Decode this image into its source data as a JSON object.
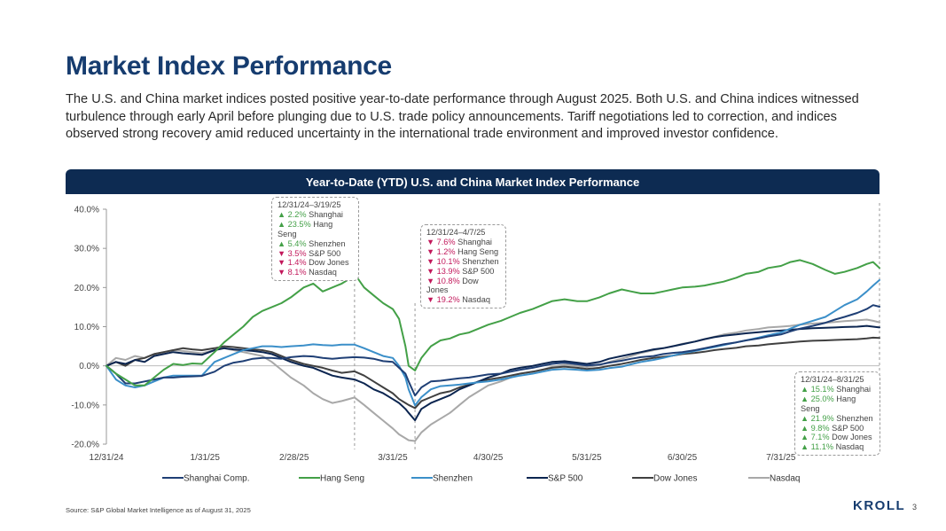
{
  "page": {
    "title": "Market Index Performance",
    "intro": "The U.S. and China market indices posted positive year-to-date performance through August 2025. Both U.S. and China indices witnessed turbulence through early April before plunging due to U.S. trade policy announcements. Tariff negotiations led to correction, and indices observed strong recovery amid reduced uncertainty in the international trade environment and improved investor confidence.",
    "source": "Source: S&P Global Market Intelligence as of August 31, 2025",
    "logo": "KROLL",
    "page_number": "3"
  },
  "callouts": [
    {
      "header": "12/31/24–3/19/25",
      "rows": [
        {
          "dir": "up",
          "value": "▲ 2.2%",
          "name": "Shanghai"
        },
        {
          "dir": "up",
          "value": "▲ 23.5%",
          "name": "Hang Seng"
        },
        {
          "dir": "up",
          "value": "▲ 5.4%",
          "name": "Shenzhen"
        },
        {
          "dir": "dn",
          "value": "▼ 3.5%",
          "name": "S&P 500"
        },
        {
          "dir": "dn",
          "value": "▼ 1.4%",
          "name": "Dow Jones"
        },
        {
          "dir": "dn",
          "value": "▼ 8.1%",
          "name": "Nasdaq"
        }
      ]
    },
    {
      "header": "12/31/24–4/7/25",
      "rows": [
        {
          "dir": "dn",
          "value": "▼ 7.6%",
          "name": "Shanghai"
        },
        {
          "dir": "dn",
          "value": "▼ 1.2%",
          "name": "Hang Seng"
        },
        {
          "dir": "dn",
          "value": "▼ 10.1%",
          "name": "Shenzhen"
        },
        {
          "dir": "dn",
          "value": "▼ 13.9%",
          "name": "S&P 500"
        },
        {
          "dir": "dn",
          "value": "▼ 10.8%",
          "name": "Dow Jones"
        },
        {
          "dir": "dn",
          "value": "▼ 19.2%",
          "name": "Nasdaq"
        }
      ]
    },
    {
      "header": "12/31/24–8/31/25",
      "rows": [
        {
          "dir": "up",
          "value": "▲ 15.1%",
          "name": "Shanghai"
        },
        {
          "dir": "up",
          "value": "▲ 25.0%",
          "name": "Hang Seng"
        },
        {
          "dir": "up",
          "value": "▲ 21.9%",
          "name": "Shenzhen"
        },
        {
          "dir": "up",
          "value": "▲ 9.8%",
          "name": "S&P 500"
        },
        {
          "dir": "up",
          "value": "▲ 7.1%",
          "name": "Dow Jones"
        },
        {
          "dir": "up",
          "value": "▲ 11.1%",
          "name": "Nasdaq"
        }
      ]
    }
  ],
  "colors": {
    "up": "#43a047",
    "down": "#c2185b",
    "header": "#0d2b52",
    "title": "#163c6f"
  },
  "chart_data": {
    "type": "line",
    "title": "Year-to-Date (YTD) U.S. and China Market Index Performance",
    "xlabel": "",
    "ylabel": "",
    "x_ticks": [
      {
        "day": 0,
        "label": "12/31/24"
      },
      {
        "day": 31,
        "label": "1/31/25"
      },
      {
        "day": 59,
        "label": "2/28/25"
      },
      {
        "day": 90,
        "label": "3/31/25"
      },
      {
        "day": 120,
        "label": "4/30/25"
      },
      {
        "day": 151,
        "label": "5/31/25"
      },
      {
        "day": 181,
        "label": "6/30/25"
      },
      {
        "day": 212,
        "label": "7/31/25"
      }
    ],
    "xlim": [
      0,
      243
    ],
    "y_ticks": [
      {
        "value": 40,
        "label": "40.0%"
      },
      {
        "value": 30,
        "label": "30.0%"
      },
      {
        "value": 20,
        "label": "20.0%"
      },
      {
        "value": 10,
        "label": "10.0%"
      },
      {
        "value": 0,
        "label": "0.0%"
      },
      {
        "value": -10,
        "label": "-10.0%"
      },
      {
        "value": -20,
        "label": "-20.0%"
      }
    ],
    "ylim": [
      -20,
      40
    ],
    "event_markers": [
      78,
      97,
      243
    ],
    "series": [
      {
        "name": "Shanghai Comp.",
        "color": "#1f3f75",
        "x": [
          0,
          3,
          6,
          9,
          12,
          15,
          18,
          21,
          24,
          27,
          30,
          34,
          37,
          40,
          43,
          46,
          49,
          52,
          55,
          58,
          62,
          65,
          68,
          71,
          74,
          78,
          81,
          84,
          87,
          90,
          92,
          94,
          95,
          97,
          99,
          102,
          105,
          108,
          111,
          114,
          117,
          120,
          124,
          127,
          130,
          134,
          137,
          140,
          144,
          148,
          151,
          155,
          158,
          162,
          165,
          168,
          172,
          175,
          178,
          181,
          185,
          188,
          191,
          194,
          198,
          201,
          205,
          208,
          212,
          215,
          218,
          222,
          226,
          229,
          232,
          236,
          239,
          241,
          243
        ],
        "values": [
          0,
          -2,
          -4.5,
          -4.5,
          -4,
          -3.5,
          -3,
          -3,
          -2.8,
          -2.7,
          -2.6,
          -1.5,
          0,
          0.8,
          1.2,
          1.8,
          2,
          2,
          1.8,
          2.2,
          2.5,
          2.4,
          2,
          1.8,
          2,
          2.2,
          2.1,
          1.8,
          1.2,
          1,
          -0.5,
          -2,
          -4,
          -7.6,
          -5.5,
          -4,
          -3.8,
          -3.5,
          -3.2,
          -3,
          -2.6,
          -2.2,
          -2,
          -1.5,
          -1,
          -0.5,
          0,
          0.5,
          0.8,
          0.4,
          0.1,
          0.3,
          0.8,
          1.3,
          1.8,
          2.2,
          2.5,
          3,
          3.3,
          3.5,
          4,
          4.5,
          5,
          5.5,
          6,
          6.5,
          7,
          7.5,
          8,
          8.8,
          9.5,
          10.2,
          11,
          11.8,
          12.5,
          13.5,
          14.5,
          15.5,
          15.1
        ]
      },
      {
        "name": "Hang Seng",
        "color": "#43a047",
        "x": [
          0,
          3,
          6,
          9,
          12,
          15,
          18,
          21,
          24,
          27,
          30,
          34,
          37,
          40,
          43,
          46,
          49,
          52,
          55,
          58,
          62,
          65,
          68,
          71,
          74,
          76,
          78,
          81,
          84,
          87,
          90,
          92,
          94,
          95,
          97,
          99,
          102,
          105,
          108,
          111,
          114,
          117,
          120,
          124,
          127,
          130,
          134,
          137,
          140,
          144,
          148,
          151,
          155,
          158,
          162,
          165,
          168,
          172,
          175,
          178,
          181,
          185,
          188,
          191,
          194,
          198,
          201,
          205,
          208,
          212,
          215,
          218,
          222,
          226,
          229,
          232,
          236,
          239,
          241,
          243
        ],
        "values": [
          0,
          -2,
          -3.5,
          -5,
          -5,
          -3,
          -1,
          0.5,
          0.2,
          0.6,
          0.5,
          3.5,
          6,
          8,
          10,
          12.5,
          14,
          15,
          16,
          17.5,
          20,
          21,
          19,
          20,
          21,
          22,
          23.5,
          20,
          18,
          16,
          14.5,
          12,
          5,
          0,
          -1.2,
          2,
          5,
          6.5,
          7,
          8,
          8.5,
          9.5,
          10.5,
          11.5,
          12.5,
          13.5,
          14.5,
          15.5,
          16.5,
          17,
          16.5,
          16.5,
          17.5,
          18.5,
          19.5,
          19,
          18.5,
          18.5,
          19,
          19.5,
          20,
          20.2,
          20.5,
          21,
          21.5,
          22.5,
          23.5,
          24,
          25,
          25.5,
          26.5,
          27,
          26,
          24.5,
          23.5,
          24,
          25,
          26,
          26.5,
          25
        ]
      },
      {
        "name": "Shenzhen",
        "color": "#3b8fc9",
        "x": [
          0,
          3,
          6,
          9,
          12,
          15,
          18,
          21,
          24,
          27,
          30,
          34,
          37,
          40,
          43,
          46,
          49,
          52,
          55,
          58,
          62,
          65,
          68,
          71,
          74,
          78,
          81,
          84,
          87,
          90,
          92,
          94,
          95,
          97,
          99,
          102,
          105,
          108,
          111,
          114,
          117,
          120,
          124,
          127,
          130,
          134,
          137,
          140,
          144,
          148,
          151,
          155,
          158,
          162,
          165,
          168,
          172,
          175,
          178,
          181,
          185,
          188,
          191,
          194,
          198,
          201,
          205,
          208,
          212,
          215,
          218,
          222,
          226,
          229,
          232,
          236,
          239,
          241,
          243
        ],
        "values": [
          0,
          -3.5,
          -5,
          -5.5,
          -5,
          -4,
          -3,
          -2.5,
          -2.5,
          -2.5,
          -2.5,
          1,
          2,
          3,
          4,
          4.5,
          5,
          5,
          4.8,
          5,
          5.2,
          5.5,
          5.3,
          5.2,
          5.4,
          5.4,
          4.5,
          3.5,
          2.5,
          2,
          0,
          -3,
          -6,
          -10.1,
          -8,
          -6,
          -5.2,
          -5,
          -4.8,
          -4.5,
          -4.2,
          -4,
          -3.5,
          -3,
          -2.5,
          -2,
          -1.5,
          -1,
          -0.8,
          -1,
          -1.2,
          -1,
          -0.6,
          -0.2,
          0.4,
          1,
          1.5,
          2,
          2.6,
          3.2,
          3.8,
          4.3,
          4.8,
          5.3,
          6,
          6.5,
          7.2,
          7.8,
          8.5,
          9.5,
          10.5,
          11.5,
          12.5,
          14,
          15.5,
          17,
          19,
          20.5,
          21.9
        ]
      },
      {
        "name": "S&P 500",
        "color": "#0b2550",
        "x": [
          0,
          3,
          6,
          9,
          12,
          15,
          18,
          21,
          24,
          27,
          30,
          34,
          37,
          40,
          43,
          46,
          49,
          52,
          55,
          58,
          62,
          65,
          68,
          71,
          74,
          78,
          81,
          84,
          87,
          90,
          92,
          94,
          95,
          97,
          99,
          102,
          105,
          108,
          111,
          114,
          117,
          120,
          124,
          127,
          130,
          134,
          137,
          140,
          144,
          148,
          151,
          155,
          158,
          162,
          165,
          168,
          172,
          175,
          178,
          181,
          185,
          188,
          191,
          194,
          198,
          201,
          205,
          208,
          212,
          215,
          218,
          222,
          226,
          229,
          232,
          236,
          239,
          241,
          243
        ],
        "values": [
          0,
          1,
          0.5,
          1.5,
          1,
          2.5,
          3,
          3.5,
          3.2,
          3,
          2.8,
          4,
          4.5,
          4.2,
          4,
          3.8,
          3.5,
          3,
          2,
          1,
          0,
          -0.5,
          -1.5,
          -2.5,
          -3,
          -3.5,
          -4.5,
          -6,
          -7,
          -8.5,
          -9.5,
          -11,
          -12,
          -13.9,
          -11,
          -9.5,
          -8.5,
          -7.5,
          -6,
          -5,
          -4,
          -3,
          -2,
          -1,
          -0.5,
          0,
          0.5,
          1,
          1.2,
          0.8,
          0.5,
          1,
          1.8,
          2.5,
          3,
          3.5,
          4.2,
          4.5,
          5,
          5.5,
          6.2,
          6.8,
          7.3,
          7.7,
          8,
          8.3,
          8.6,
          8.8,
          9,
          9.2,
          9.4,
          9.6,
          9.7,
          9.8,
          9.9,
          10,
          10.2,
          10,
          9.8
        ]
      },
      {
        "name": "Dow Jones",
        "color": "#404040",
        "x": [
          0,
          3,
          6,
          9,
          12,
          15,
          18,
          21,
          24,
          27,
          30,
          34,
          37,
          40,
          43,
          46,
          49,
          52,
          55,
          58,
          62,
          65,
          68,
          71,
          74,
          78,
          81,
          84,
          87,
          90,
          92,
          94,
          95,
          97,
          99,
          102,
          105,
          108,
          111,
          114,
          117,
          120,
          124,
          127,
          130,
          134,
          137,
          140,
          144,
          148,
          151,
          155,
          158,
          162,
          165,
          168,
          172,
          175,
          178,
          181,
          185,
          188,
          191,
          194,
          198,
          201,
          205,
          208,
          212,
          215,
          218,
          222,
          226,
          229,
          232,
          236,
          239,
          241,
          243
        ],
        "values": [
          0,
          1,
          0,
          1.5,
          2,
          3,
          3.5,
          4,
          4.5,
          4.2,
          4,
          4.5,
          5,
          4.8,
          4.5,
          4.2,
          4,
          3.5,
          2.5,
          1.5,
          0.5,
          0,
          -0.5,
          -1.2,
          -1.8,
          -1.4,
          -2.5,
          -4,
          -5.5,
          -7,
          -8.5,
          -9.5,
          -10,
          -10.8,
          -9,
          -8,
          -7,
          -6.5,
          -5.5,
          -4.8,
          -4,
          -3.5,
          -3,
          -2.5,
          -2,
          -1.5,
          -1,
          -0.5,
          -0.2,
          -0.5,
          -0.8,
          -0.5,
          0,
          0.5,
          1,
          1.5,
          2,
          2.3,
          2.6,
          3,
          3.3,
          3.6,
          4,
          4.3,
          4.6,
          5,
          5.2,
          5.5,
          5.8,
          6,
          6.2,
          6.4,
          6.5,
          6.6,
          6.7,
          6.8,
          7,
          7.2,
          7.1
        ]
      },
      {
        "name": "Nasdaq",
        "color": "#a8a8a8",
        "x": [
          0,
          3,
          6,
          9,
          12,
          15,
          18,
          21,
          24,
          27,
          30,
          34,
          37,
          40,
          43,
          46,
          49,
          52,
          55,
          58,
          62,
          65,
          68,
          71,
          74,
          78,
          81,
          84,
          87,
          90,
          92,
          94,
          95,
          97,
          99,
          102,
          105,
          108,
          111,
          114,
          117,
          120,
          124,
          127,
          130,
          134,
          137,
          140,
          144,
          148,
          151,
          155,
          158,
          162,
          165,
          168,
          172,
          175,
          178,
          181,
          185,
          188,
          191,
          194,
          198,
          201,
          205,
          208,
          212,
          215,
          218,
          222,
          226,
          229,
          232,
          236,
          239,
          241,
          243
        ],
        "values": [
          0,
          2,
          1.5,
          2.5,
          2,
          3,
          3.5,
          4,
          3.8,
          3.5,
          3.2,
          4,
          4.5,
          4,
          3.5,
          3,
          2.5,
          1,
          -1,
          -3,
          -5,
          -7,
          -8.5,
          -9.5,
          -9,
          -8.1,
          -10,
          -12,
          -14,
          -16,
          -17.5,
          -18.5,
          -19,
          -19.2,
          -17,
          -15,
          -13.5,
          -12,
          -10,
          -8,
          -6.5,
          -5,
          -4,
          -3,
          -2,
          -1.5,
          -1,
          -0.3,
          0.3,
          0,
          -0.3,
          0.2,
          1,
          1.8,
          2.5,
          3.3,
          4,
          4.5,
          5,
          5.6,
          6.2,
          6.8,
          7.4,
          8,
          8.5,
          9,
          9.4,
          9.8,
          10,
          10.2,
          10.5,
          10.8,
          11,
          11.2,
          11.4,
          11.6,
          11.8,
          11.5,
          11.1
        ]
      }
    ]
  }
}
